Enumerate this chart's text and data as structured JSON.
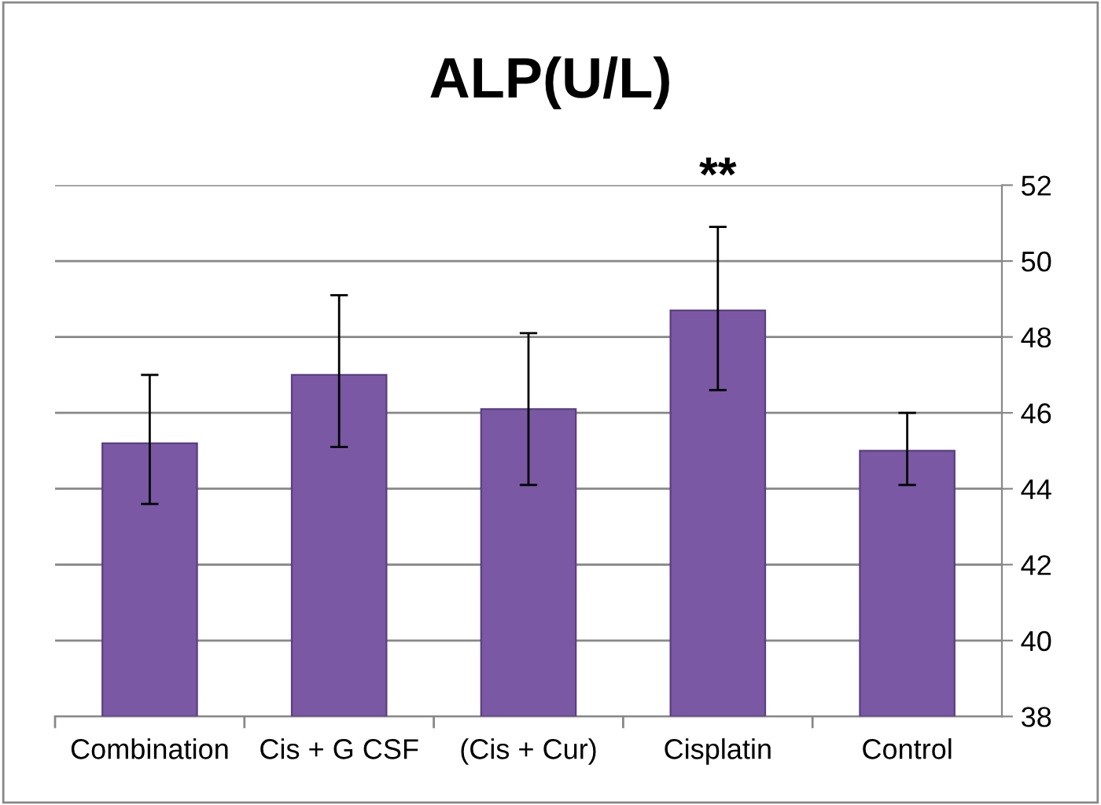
{
  "chart_data": {
    "type": "bar",
    "title": "ALP(U/L)",
    "categories": [
      "Combination",
      "Cis + G CSF",
      "(Cis + Cur)",
      "Cisplatin",
      "Control"
    ],
    "values": [
      45.2,
      47.0,
      46.1,
      48.7,
      45.0
    ],
    "errors": [
      [
        43.6,
        47.0
      ],
      [
        45.1,
        49.1
      ],
      [
        44.1,
        48.1
      ],
      [
        46.6,
        50.9
      ],
      [
        44.1,
        46.0
      ]
    ],
    "color": "#7a58a4",
    "ylim": [
      38,
      52
    ],
    "yticks": [
      38,
      40,
      42,
      44,
      46,
      48,
      50,
      52
    ],
    "grid": "y",
    "annotations": [
      "**"
    ]
  }
}
